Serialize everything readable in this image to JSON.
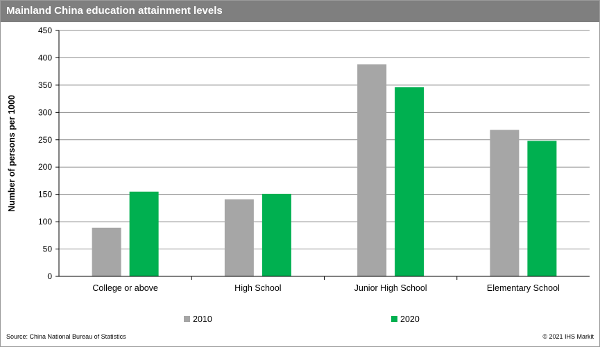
{
  "title": "Mainland China education attainment levels",
  "source": "Source: China National Bureau of Statistics",
  "copyright": "© 2021 IHS Markit",
  "colors": {
    "header_bg": "#7f7f7f",
    "series_2010": "#a6a6a6",
    "series_2020": "#00b050"
  },
  "chart_data": {
    "type": "bar",
    "categories": [
      "College or above",
      "High School",
      "Junior High School",
      "Elementary School"
    ],
    "series": [
      {
        "name": "2010",
        "values": [
          89,
          141,
          388,
          268
        ]
      },
      {
        "name": "2020",
        "values": [
          155,
          151,
          346,
          248
        ]
      }
    ],
    "xlabel": "",
    "ylabel": "Number of persons per 1000",
    "ylim": [
      0,
      450
    ],
    "yticks": [
      "0",
      "50",
      "100",
      "150",
      "200",
      "250",
      "300",
      "350",
      "400",
      "450"
    ],
    "grid": true,
    "legend": "bottom"
  }
}
